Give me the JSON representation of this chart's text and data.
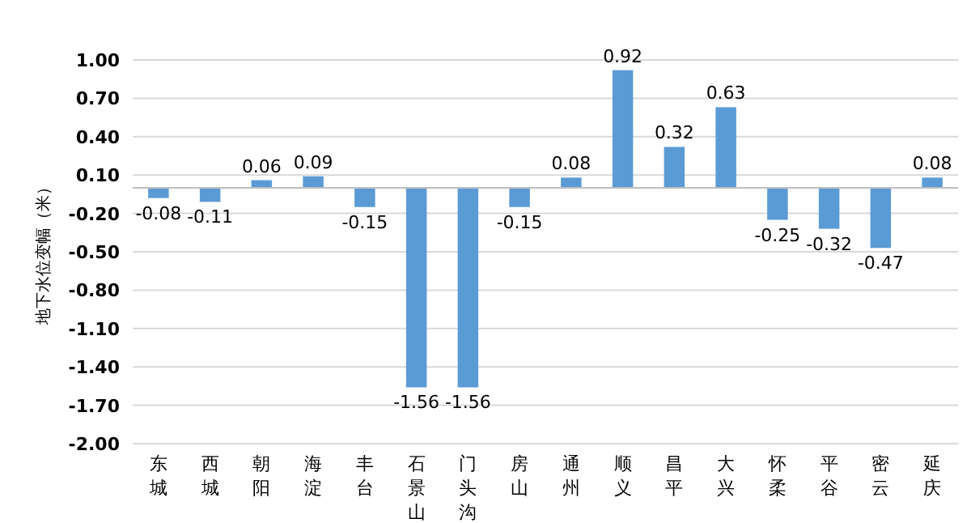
{
  "chart_data": {
    "type": "bar",
    "ylabel": "地下水位变幅（米）",
    "categories": [
      "东城",
      "西城",
      "朝阳",
      "海淀",
      "丰台",
      "石景山",
      "门头沟",
      "房山",
      "通州",
      "顺义",
      "昌平",
      "大兴",
      "怀柔",
      "平谷",
      "密云",
      "延庆"
    ],
    "values": [
      -0.08,
      -0.11,
      0.06,
      0.09,
      -0.15,
      -1.56,
      -1.56,
      -0.15,
      0.08,
      0.92,
      0.32,
      0.63,
      -0.25,
      -0.32,
      -0.47,
      0.08
    ],
    "color": "#5b9bd5",
    "data_labels": true,
    "grid": "y",
    "ylim": [
      -2.0,
      1.0
    ],
    "yticks": [
      {
        "value": 1.0,
        "label": "1.00"
      },
      {
        "value": 0.7,
        "label": "0.70"
      },
      {
        "value": 0.4,
        "label": "0.40"
      },
      {
        "value": 0.1,
        "label": "0.10"
      },
      {
        "value": -0.2,
        "label": "-0.20"
      },
      {
        "value": -0.5,
        "label": "-0.50"
      },
      {
        "value": -0.8,
        "label": "-0.80"
      },
      {
        "value": -1.1,
        "label": "-1.10"
      },
      {
        "value": -1.4,
        "label": "-1.40"
      },
      {
        "value": -1.7,
        "label": "-1.70"
      },
      {
        "value": -2.0,
        "label": "-2.00"
      }
    ]
  }
}
